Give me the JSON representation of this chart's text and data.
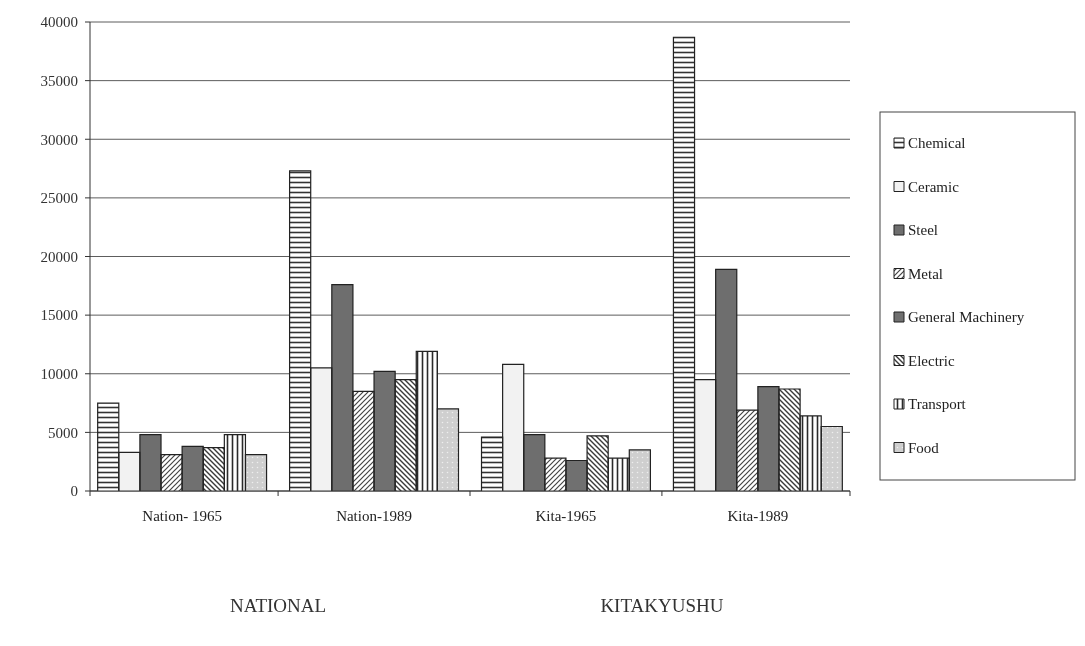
{
  "chart_data": {
    "type": "bar",
    "categories": [
      "Nation- 1965",
      "Nation-1989",
      "Kita-1965",
      "Kita-1989"
    ],
    "series": [
      {
        "name": "Chemical",
        "color": "#333333",
        "values": [
          7500,
          27300,
          4600,
          38700
        ]
      },
      {
        "name": "Ceramic",
        "color": "#f2f2f2",
        "values": [
          3300,
          10500,
          10800,
          9500
        ]
      },
      {
        "name": "Steel",
        "color": "#6e6e6e",
        "values": [
          4800,
          17600,
          4800,
          18900
        ]
      },
      {
        "name": "Metal",
        "color": "#444444",
        "values": [
          3100,
          8500,
          2800,
          6900
        ]
      },
      {
        "name": "General Machinery",
        "color": "#707070",
        "values": [
          3800,
          10200,
          2600,
          8900
        ]
      },
      {
        "name": "Electric",
        "color": "#3a3a3a",
        "values": [
          3700,
          9500,
          4700,
          8700
        ]
      },
      {
        "name": "Transport",
        "color": "#2a2a2a",
        "values": [
          4800,
          11900,
          2800,
          6400
        ]
      },
      {
        "name": "Food",
        "color": "#cfcfcf",
        "values": [
          3100,
          7000,
          3500,
          5500
        ]
      }
    ],
    "ylim": [
      0,
      40000
    ],
    "yticks": [
      0,
      5000,
      10000,
      15000,
      20000,
      25000,
      30000,
      35000,
      40000
    ],
    "grid": "y",
    "legend": "right",
    "annotations": [
      "NATIONAL",
      "KITAKYUSHU"
    ]
  }
}
